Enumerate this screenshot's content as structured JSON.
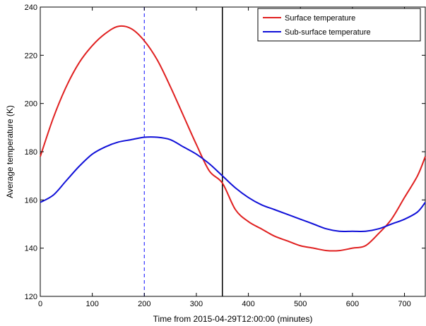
{
  "chart_data": {
    "type": "line",
    "xlabel": "Time from 2015-04-29T12:00:00 (minutes)",
    "ylabel": "Average temperature (K)",
    "xlim": [
      0,
      740
    ],
    "ylim": [
      120,
      240
    ],
    "x_ticks": [
      0,
      100,
      200,
      300,
      400,
      500,
      600,
      700
    ],
    "y_ticks": [
      120,
      140,
      160,
      180,
      200,
      220,
      240
    ],
    "grid": false,
    "legend_position": "top-right",
    "vertical_lines": [
      {
        "x": 200,
        "style": "dashed",
        "color": "#3333ff"
      },
      {
        "x": 350,
        "style": "solid",
        "color": "#000000"
      }
    ],
    "series": [
      {
        "name": "Surface temperature",
        "color": "#e02020",
        "x": [
          0,
          25,
          50,
          75,
          100,
          125,
          150,
          175,
          200,
          225,
          250,
          275,
          300,
          325,
          350,
          375,
          400,
          425,
          450,
          475,
          500,
          525,
          550,
          575,
          600,
          625,
          650,
          675,
          700,
          725,
          740
        ],
        "y": [
          178,
          194,
          207,
          217,
          224,
          229,
          232,
          231,
          226,
          218,
          207,
          195,
          183,
          172,
          167,
          156,
          151,
          148,
          145,
          143,
          141,
          140,
          139,
          139,
          140,
          141,
          146,
          152,
          161,
          170,
          178
        ]
      },
      {
        "name": "Sub-surface temperature",
        "color": "#1010d8",
        "x": [
          0,
          25,
          50,
          75,
          100,
          125,
          150,
          175,
          200,
          225,
          250,
          275,
          300,
          325,
          350,
          375,
          400,
          425,
          450,
          475,
          500,
          525,
          550,
          575,
          600,
          625,
          650,
          675,
          700,
          725,
          740
        ],
        "y": [
          159,
          162,
          168,
          174,
          179,
          182,
          184,
          185,
          186,
          186,
          185,
          182,
          179,
          175,
          170,
          165,
          161,
          158,
          156,
          154,
          152,
          150,
          148,
          147,
          147,
          147,
          148,
          150,
          152,
          155,
          159
        ]
      }
    ]
  }
}
